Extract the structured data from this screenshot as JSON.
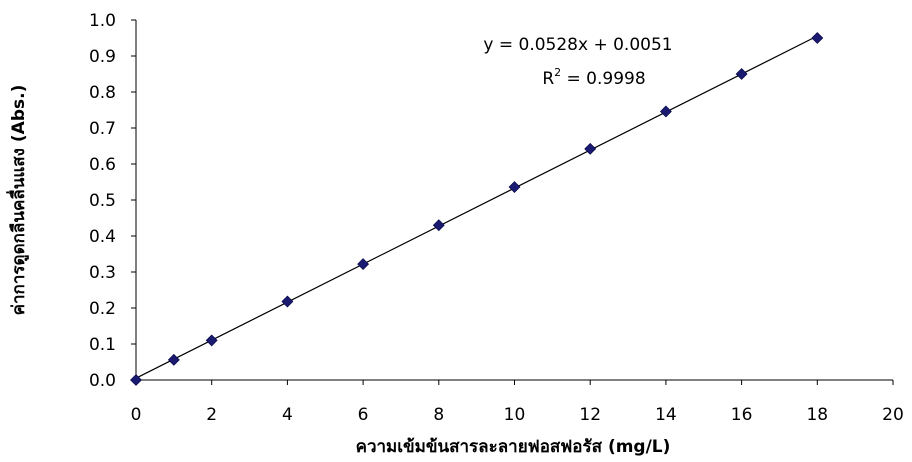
{
  "chart_data": {
    "type": "scatter",
    "title": "",
    "xlabel": "ความเข้มข้นสารละลายฟอสฟอรัส (mg/L)",
    "ylabel": "ค่าการดูดกลืนคลื่นแสง (Abs.)",
    "xlim": [
      0,
      20
    ],
    "ylim": [
      0,
      1.0
    ],
    "x_ticks": [
      "0",
      "2",
      "4",
      "6",
      "8",
      "10",
      "12",
      "14",
      "16",
      "18",
      "20"
    ],
    "y_ticks": [
      "0.0",
      "0.1",
      "0.2",
      "0.3",
      "0.4",
      "0.5",
      "0.6",
      "0.7",
      "0.8",
      "0.9",
      "1.0"
    ],
    "grid": false,
    "legend": false,
    "series": [
      {
        "marker": "diamond",
        "color": "#1a1a70",
        "x": [
          0,
          1,
          2,
          4,
          6,
          8,
          10,
          12,
          14,
          16,
          18
        ],
        "y": [
          0.0,
          0.056,
          0.11,
          0.218,
          0.322,
          0.43,
          0.536,
          0.642,
          0.746,
          0.85,
          0.95
        ]
      }
    ],
    "trendline": {
      "type": "linear",
      "slope": 0.0528,
      "intercept": 0.0051,
      "x_range": [
        0,
        18
      ],
      "color": "#000000"
    },
    "annotations": {
      "equation": "y = 0.0528x + 0.0051",
      "r2_base": "R",
      "r2_sup": "2",
      "r2_value": " = 0.9998"
    }
  }
}
